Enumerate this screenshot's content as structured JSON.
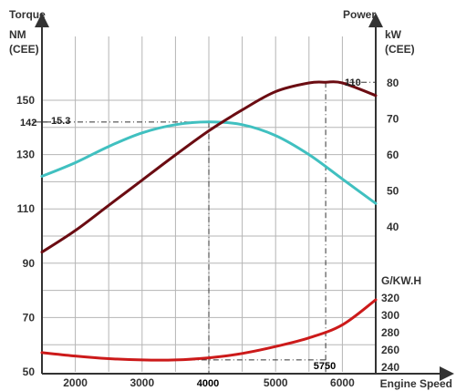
{
  "chart_data": {
    "type": "line",
    "x_axis": {
      "label": "Engine Speed",
      "range": [
        1500,
        6500
      ],
      "ticks": [
        2000,
        3000,
        4000,
        5000,
        6000
      ]
    },
    "left_axis": {
      "title": "Torque",
      "unit": [
        "NM",
        "(CEE)"
      ],
      "range": [
        50,
        170
      ],
      "ticks": [
        50,
        70,
        90,
        110,
        130,
        150
      ]
    },
    "power_axis": {
      "title": "Power",
      "unit": [
        "kW",
        "(CEE)"
      ],
      "range": [
        40,
        85
      ],
      "ticks": [
        40,
        50,
        60,
        70,
        80
      ]
    },
    "consumption_axis": {
      "unit": "G/KW.H",
      "range": [
        240,
        340
      ],
      "ticks": [
        240,
        260,
        280,
        300,
        320
      ]
    },
    "grid": true,
    "series": [
      {
        "color": "#40c0c0",
        "axis": "left",
        "x": [
          1500,
          2000,
          2500,
          3000,
          3500,
          4000,
          4500,
          5000,
          5500,
          6000,
          6500
        ],
        "y": [
          122,
          127,
          133,
          138,
          141,
          142,
          141,
          137,
          130,
          121,
          112
        ]
      },
      {
        "color": "#6b0c12",
        "axis": "power",
        "x": [
          1500,
          2000,
          2500,
          3000,
          3500,
          4000,
          4500,
          5000,
          5500,
          5750,
          6000,
          6500
        ],
        "y": [
          33.0,
          39.0,
          46.0,
          53.0,
          60.0,
          66.7,
          72.5,
          77.6,
          80.0,
          80.2,
          80.0,
          76.5
        ]
      },
      {
        "color": "#cc1a1a",
        "axis": "consumption",
        "x": [
          1500,
          2000,
          2500,
          3000,
          3500,
          4000,
          4500,
          5000,
          5500,
          6000,
          6500
        ],
        "y": [
          257,
          253,
          250,
          248.5,
          248.5,
          251,
          256,
          264,
          274,
          289,
          318
        ]
      }
    ],
    "annotations": {
      "torque_peak_value": "142",
      "torque_peak_label": "15.3",
      "torque_peak_rpm": "4000",
      "power_peak_label": "110",
      "power_peak_rpm": "5750"
    }
  }
}
